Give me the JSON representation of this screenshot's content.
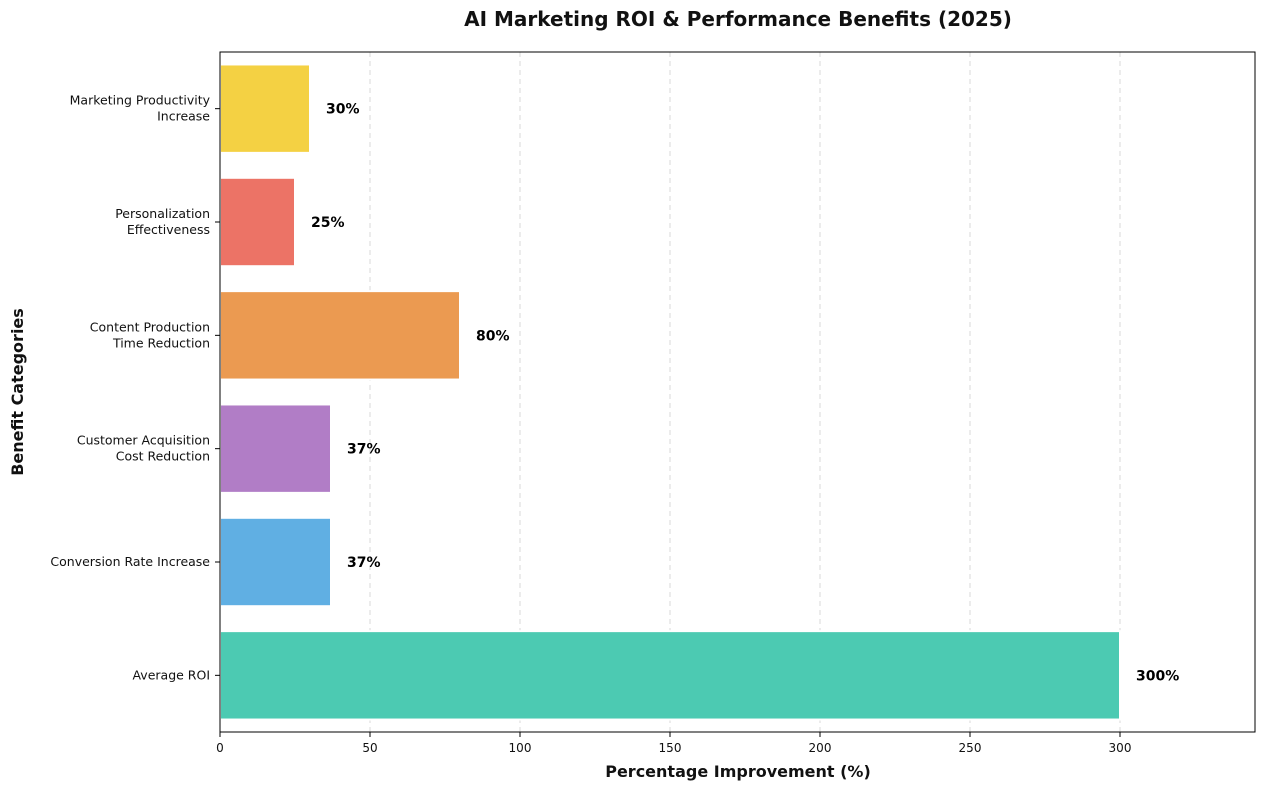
{
  "chart_data": {
    "type": "bar",
    "orientation": "horizontal",
    "title": "AI Marketing ROI & Performance Benefits (2025)",
    "xlabel": "Percentage Improvement (%)",
    "ylabel": "Benefit Categories",
    "xlim": [
      0,
      345
    ],
    "xticks": [
      0,
      50,
      100,
      150,
      200,
      250,
      300
    ],
    "grid": "x-dashed",
    "categories": [
      [
        "Average ROI"
      ],
      [
        "Conversion Rate Increase"
      ],
      [
        "Customer Acquisition",
        "Cost Reduction"
      ],
      [
        "Content Production",
        "Time Reduction"
      ],
      [
        "Personalization",
        "Effectiveness"
      ],
      [
        "Marketing Productivity",
        "Increase"
      ]
    ],
    "values": [
      300,
      37,
      37,
      80,
      25,
      30
    ],
    "value_labels": [
      "300%",
      "37%",
      "37%",
      "80%",
      "25%",
      "30%"
    ],
    "colors": [
      "#48c9b0",
      "#5dade2",
      "#af7ac5",
      "#eb984e",
      "#ec7063",
      "#f4d03f"
    ]
  }
}
